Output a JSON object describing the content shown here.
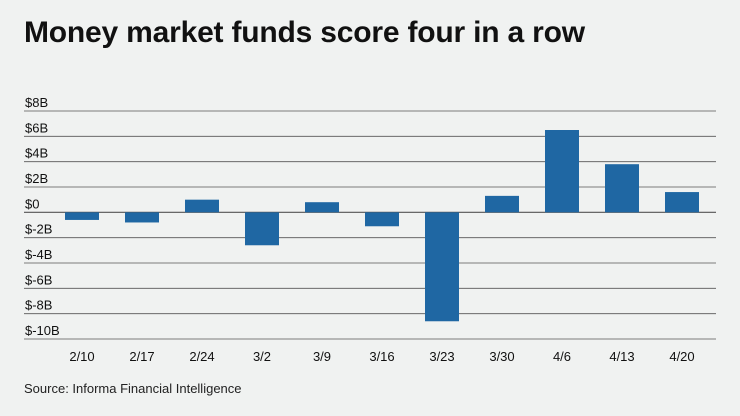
{
  "title": "Money market funds score four in a row",
  "source": "Source: Informa Financial Intelligence",
  "colors": {
    "bar": "#1f67a3",
    "grid": "#555555",
    "background": "#f0f2f1"
  },
  "chart_data": {
    "type": "bar",
    "title": "Money market funds score four in a row",
    "xlabel": "",
    "ylabel": "",
    "categories": [
      "2/10",
      "2/17",
      "2/24",
      "3/2",
      "3/9",
      "3/16",
      "3/23",
      "3/30",
      "4/6",
      "4/13",
      "4/20"
    ],
    "values": [
      -0.6,
      -0.8,
      1.0,
      -2.6,
      0.8,
      -1.1,
      -8.6,
      1.3,
      6.5,
      3.8,
      1.6
    ],
    "units": "billions of dollars",
    "ylim": [
      -10,
      8
    ],
    "yticks": [
      8,
      6,
      4,
      2,
      0,
      -2,
      -4,
      -6,
      -8,
      -10
    ],
    "ytick_labels": [
      "$8B",
      "$6B",
      "$4B",
      "$2B",
      "$0",
      "$-2B",
      "$-4B",
      "$-6B",
      "$-8B",
      "$-10B"
    ],
    "grid": true,
    "legend": "none"
  }
}
